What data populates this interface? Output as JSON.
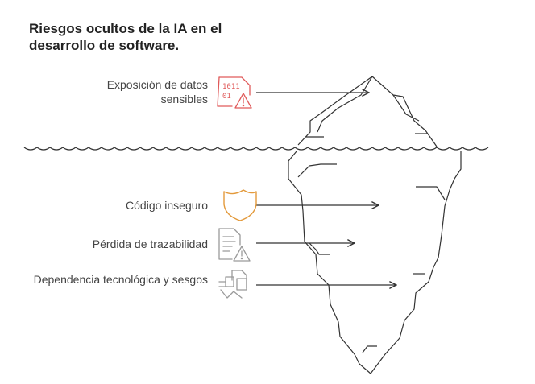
{
  "title": "Riesgos ocultos de la IA en el desarrollo de software.",
  "risks": [
    {
      "label": "Exposición de datos sensibles",
      "icon": "data-warning-icon",
      "color": "#e05a5a"
    },
    {
      "label": "Código inseguro",
      "icon": "shield-icon",
      "color": "#e39a3c"
    },
    {
      "label": "Pérdida de trazabilidad",
      "icon": "document-warning-icon",
      "color": "#9a9a9a"
    },
    {
      "label": "Dependencia tecnológica y sesgos",
      "icon": "dependency-icon",
      "color": "#9a9a9a"
    }
  ]
}
